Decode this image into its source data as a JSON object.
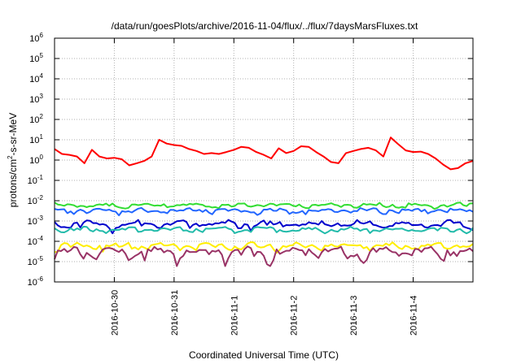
{
  "chart_data": {
    "type": "line",
    "title": "/data/run/goesPlots/archive/2016-11-04/flux/../flux/7daysMarsFluxes.txt",
    "xlabel": "Coordinated Universal Time (UTC)",
    "ylabel": {
      "base": "protons/cm",
      "sup": "2",
      "rest": "-s-sr-MeV"
    },
    "x_range": [
      "2016-10-29T00:00",
      "2016-11-04T24:00"
    ],
    "x_ticks": [
      "2016-10-30",
      "2016-10-31",
      "2016-11-1",
      "2016-11-2",
      "2016-11-3",
      "2016-11-4"
    ],
    "y_scale": "log",
    "ylim": [
      1e-06,
      1000000.0
    ],
    "y_ticks": [
      {
        "base": "10",
        "exp": "-6"
      },
      {
        "base": "10",
        "exp": "-5"
      },
      {
        "base": "10",
        "exp": "-4"
      },
      {
        "base": "10",
        "exp": "-3"
      },
      {
        "base": "10",
        "exp": "-2"
      },
      {
        "base": "10",
        "exp": "-1"
      },
      {
        "base": "10",
        "exp": "0"
      },
      {
        "base": "10",
        "exp": "1"
      },
      {
        "base": "10",
        "exp": "2"
      },
      {
        "base": "10",
        "exp": "3"
      },
      {
        "base": "10",
        "exp": "4"
      },
      {
        "base": "10",
        "exp": "5"
      },
      {
        "base": "10",
        "exp": "6"
      }
    ],
    "grid": true,
    "series": [
      {
        "color": "#ff0000",
        "x": [
          "2016-10-29T00:00",
          "2016-10-29T03:00",
          "2016-10-29T06:00",
          "2016-10-29T09:00",
          "2016-10-29T12:00",
          "2016-10-29T15:00",
          "2016-10-29T18:00",
          "2016-10-29T21:00",
          "2016-10-30T00:00",
          "2016-10-30T03:00",
          "2016-10-30T06:00",
          "2016-10-30T09:00",
          "2016-10-30T12:00",
          "2016-10-30T15:00",
          "2016-10-30T18:00",
          "2016-10-30T21:00",
          "2016-10-31T00:00",
          "2016-10-31T03:00",
          "2016-10-31T06:00",
          "2016-10-31T09:00",
          "2016-10-31T12:00",
          "2016-10-31T15:00",
          "2016-10-31T18:00",
          "2016-10-31T21:00",
          "2016-11-01T00:00",
          "2016-11-01T03:00",
          "2016-11-01T06:00",
          "2016-11-01T09:00",
          "2016-11-01T12:00",
          "2016-11-01T15:00",
          "2016-11-01T18:00",
          "2016-11-01T21:00",
          "2016-11-02T00:00",
          "2016-11-02T03:00",
          "2016-11-02T06:00",
          "2016-11-02T09:00",
          "2016-11-02T12:00",
          "2016-11-02T15:00",
          "2016-11-02T18:00",
          "2016-11-02T21:00",
          "2016-11-03T00:00",
          "2016-11-03T03:00",
          "2016-11-03T06:00",
          "2016-11-03T09:00",
          "2016-11-03T12:00",
          "2016-11-03T15:00",
          "2016-11-03T18:00",
          "2016-11-03T21:00",
          "2016-11-04T00:00",
          "2016-11-04T03:00",
          "2016-11-04T06:00",
          "2016-11-04T09:00",
          "2016-11-04T12:00",
          "2016-11-04T15:00",
          "2016-11-04T18:00",
          "2016-11-04T21:00",
          "2016-11-04T24:00"
        ],
        "y": [
          3.5,
          2.0,
          1.8,
          1.5,
          0.7,
          3.2,
          1.5,
          1.2,
          1.3,
          1.1,
          0.55,
          0.7,
          0.9,
          1.5,
          10.0,
          6.5,
          5.5,
          5.0,
          3.5,
          2.8,
          2.0,
          2.2,
          2.0,
          2.5,
          3.2,
          4.5,
          4.0,
          2.5,
          1.8,
          1.2,
          3.8,
          2.2,
          2.8,
          4.8,
          4.5,
          2.5,
          1.5,
          0.8,
          0.7,
          2.2,
          2.8,
          3.5,
          4.0,
          3.0,
          1.5,
          13.0,
          6.0,
          3.0,
          2.5,
          2.6,
          2.0,
          1.2,
          0.6,
          0.35,
          0.4,
          0.7,
          0.9
        ]
      },
      {
        "color": "#33dd33",
        "base": 0.006,
        "amp": 0.0018
      },
      {
        "color": "#2266ff",
        "base": 0.0032,
        "amp": 0.001
      },
      {
        "color": "#0000cc",
        "base": 0.0007,
        "amp": 0.00035
      },
      {
        "color": "#22bbaa",
        "base": 0.00038,
        "amp": 0.00012
      },
      {
        "color": "#ffee00",
        "base": 6e-05,
        "amp": 2.5e-05
      },
      {
        "color": "#993366",
        "base": 3e-05,
        "amp": 2e-05
      }
    ]
  }
}
